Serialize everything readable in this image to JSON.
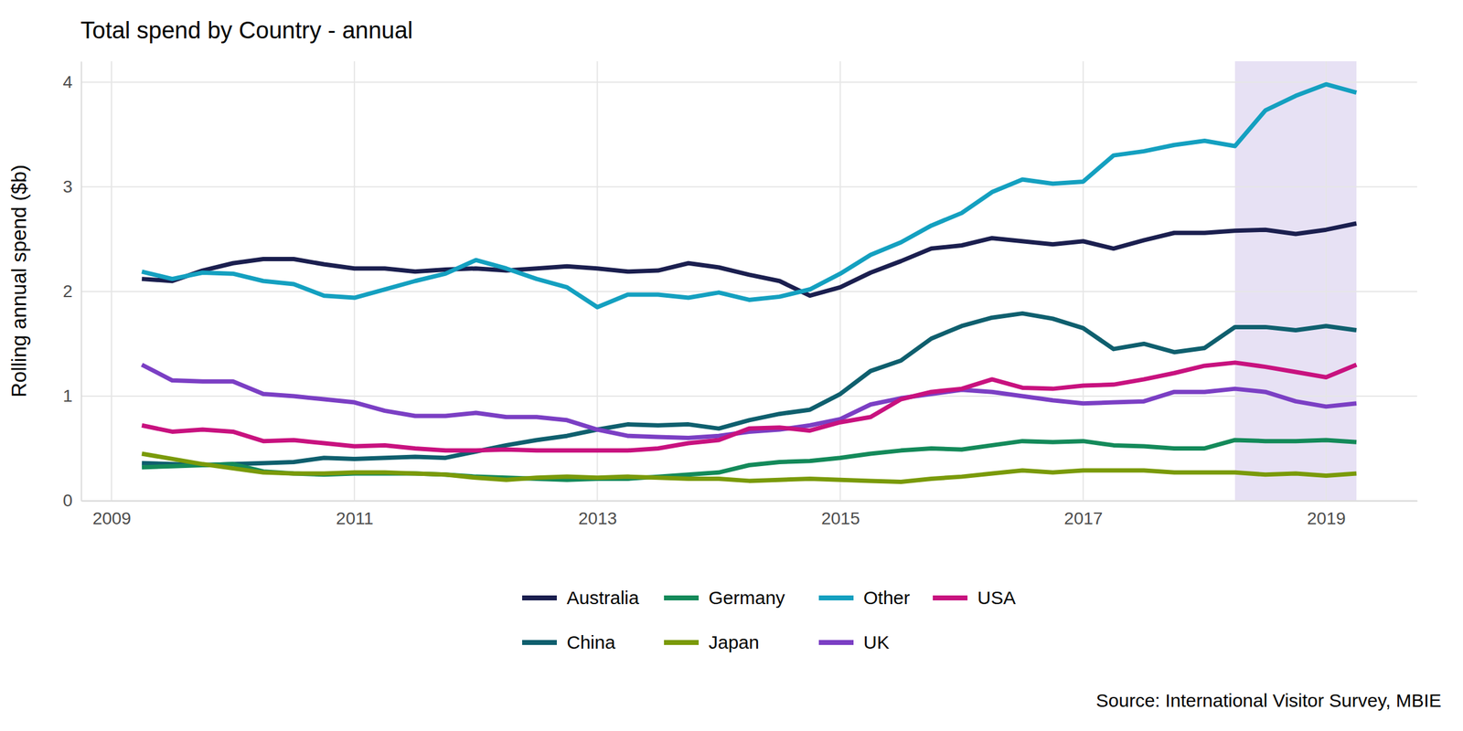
{
  "chart_data": {
    "type": "line",
    "title": "Total spend by Country - annual",
    "y_label": "Rolling annual spend ($b)",
    "source": "Source: International Visitor Survey, MBIE",
    "x": [
      2009.25,
      2009.5,
      2009.75,
      2010.0,
      2010.25,
      2010.5,
      2010.75,
      2011.0,
      2011.25,
      2011.5,
      2011.75,
      2012.0,
      2012.25,
      2012.5,
      2012.75,
      2013.0,
      2013.25,
      2013.5,
      2013.75,
      2014.0,
      2014.25,
      2014.5,
      2014.75,
      2015.0,
      2015.25,
      2015.5,
      2015.75,
      2016.0,
      2016.25,
      2016.5,
      2016.75,
      2017.0,
      2017.25,
      2017.5,
      2017.75,
      2018.0,
      2018.25,
      2018.5,
      2018.75,
      2019.0,
      2019.25
    ],
    "series": [
      {
        "name": "Australia",
        "color": "#1b1f4f",
        "values": [
          2.12,
          2.1,
          2.2,
          2.27,
          2.31,
          2.31,
          2.26,
          2.22,
          2.22,
          2.19,
          2.21,
          2.22,
          2.2,
          2.22,
          2.24,
          2.22,
          2.19,
          2.2,
          2.27,
          2.23,
          2.16,
          2.1,
          1.96,
          2.04,
          2.18,
          2.29,
          2.41,
          2.44,
          2.51,
          2.48,
          2.45,
          2.48,
          2.41,
          2.49,
          2.56,
          2.56,
          2.58,
          2.59,
          2.55,
          2.59,
          2.65
        ]
      },
      {
        "name": "China",
        "color": "#0f5f6e",
        "values": [
          0.36,
          0.35,
          0.34,
          0.35,
          0.36,
          0.37,
          0.41,
          0.4,
          0.41,
          0.42,
          0.41,
          0.47,
          0.53,
          0.58,
          0.62,
          0.68,
          0.73,
          0.72,
          0.73,
          0.69,
          0.77,
          0.83,
          0.87,
          1.02,
          1.24,
          1.34,
          1.55,
          1.67,
          1.75,
          1.79,
          1.74,
          1.65,
          1.45,
          1.5,
          1.42,
          1.46,
          1.66,
          1.66,
          1.63,
          1.67,
          1.63
        ]
      },
      {
        "name": "Germany",
        "color": "#148a5a",
        "values": [
          0.32,
          0.33,
          0.34,
          0.35,
          0.28,
          0.26,
          0.25,
          0.26,
          0.26,
          0.26,
          0.25,
          0.23,
          0.22,
          0.21,
          0.2,
          0.21,
          0.21,
          0.23,
          0.25,
          0.27,
          0.34,
          0.37,
          0.38,
          0.41,
          0.45,
          0.48,
          0.5,
          0.49,
          0.53,
          0.57,
          0.56,
          0.57,
          0.53,
          0.52,
          0.5,
          0.5,
          0.58,
          0.57,
          0.57,
          0.58,
          0.56
        ]
      },
      {
        "name": "Japan",
        "color": "#7a9a0a",
        "values": [
          0.45,
          0.4,
          0.35,
          0.31,
          0.27,
          0.26,
          0.26,
          0.27,
          0.27,
          0.26,
          0.25,
          0.22,
          0.2,
          0.22,
          0.23,
          0.22,
          0.23,
          0.22,
          0.21,
          0.21,
          0.19,
          0.2,
          0.21,
          0.2,
          0.19,
          0.18,
          0.21,
          0.23,
          0.26,
          0.29,
          0.27,
          0.29,
          0.29,
          0.29,
          0.27,
          0.27,
          0.27,
          0.25,
          0.26,
          0.24,
          0.26
        ]
      },
      {
        "name": "Other",
        "color": "#14a0c0",
        "values": [
          2.19,
          2.12,
          2.18,
          2.17,
          2.1,
          2.07,
          1.96,
          1.94,
          2.02,
          2.1,
          2.17,
          2.3,
          2.22,
          2.12,
          2.04,
          1.85,
          1.97,
          1.97,
          1.94,
          1.99,
          1.92,
          1.95,
          2.02,
          2.17,
          2.35,
          2.47,
          2.63,
          2.75,
          2.95,
          3.07,
          3.03,
          3.05,
          3.3,
          3.34,
          3.4,
          3.44,
          3.39,
          3.73,
          3.87,
          3.98,
          3.9
        ]
      },
      {
        "name": "UK",
        "color": "#7b3fc4",
        "values": [
          1.3,
          1.15,
          1.14,
          1.14,
          1.02,
          1.0,
          0.97,
          0.94,
          0.86,
          0.81,
          0.81,
          0.84,
          0.8,
          0.8,
          0.77,
          0.68,
          0.62,
          0.61,
          0.6,
          0.62,
          0.66,
          0.68,
          0.72,
          0.78,
          0.92,
          0.98,
          1.02,
          1.06,
          1.04,
          1.0,
          0.96,
          0.93,
          0.94,
          0.95,
          1.04,
          1.04,
          1.07,
          1.04,
          0.95,
          0.9,
          0.93
        ]
      },
      {
        "name": "USA",
        "color": "#c8127f",
        "values": [
          0.72,
          0.66,
          0.68,
          0.66,
          0.57,
          0.58,
          0.55,
          0.52,
          0.53,
          0.5,
          0.48,
          0.48,
          0.49,
          0.48,
          0.48,
          0.48,
          0.48,
          0.5,
          0.55,
          0.58,
          0.69,
          0.7,
          0.67,
          0.75,
          0.8,
          0.97,
          1.04,
          1.07,
          1.16,
          1.08,
          1.07,
          1.1,
          1.11,
          1.16,
          1.22,
          1.29,
          1.32,
          1.28,
          1.23,
          1.18,
          1.3
        ]
      }
    ],
    "shaded_range": [
      2018.25,
      2019.25
    ],
    "xlim": [
      2008.75,
      2019.75
    ],
    "xticks": [
      2009,
      2011,
      2013,
      2015,
      2017,
      2019
    ],
    "ylim": [
      0,
      4.2
    ],
    "yticks": [
      0,
      1,
      2,
      3,
      4
    ],
    "grid": true,
    "legend": "bottom"
  }
}
